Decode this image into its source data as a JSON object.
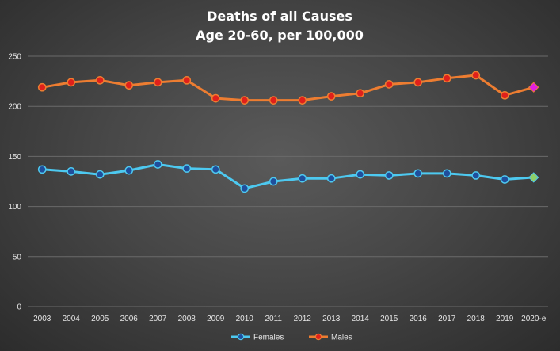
{
  "chart_data": {
    "type": "line",
    "title": [
      "Deaths of all Causes",
      "Age 20-60, per 100,000"
    ],
    "xlabel": "",
    "ylabel": "",
    "categories": [
      "2003",
      "2004",
      "2005",
      "2006",
      "2007",
      "2008",
      "2009",
      "2010",
      "2011",
      "2012",
      "2013",
      "2014",
      "2015",
      "2016",
      "2017",
      "2018",
      "2019",
      "2020-e"
    ],
    "ylim": [
      0,
      250
    ],
    "yticks": [
      0,
      50,
      100,
      150,
      200,
      250
    ],
    "grid": true,
    "legend_position": "bottom",
    "series": [
      {
        "name": "Females",
        "color": "#4dc9f0",
        "marker_fill": "#1f4e9c",
        "last_marker": "diamond",
        "last_marker_color": "#8fd16a",
        "values": [
          137,
          135,
          132,
          136,
          142,
          138,
          137,
          118,
          125,
          128,
          128,
          132,
          131,
          133,
          133,
          131,
          127,
          129
        ]
      },
      {
        "name": "Males",
        "color": "#ed7d31",
        "marker_fill": "#e0201b",
        "last_marker": "diamond",
        "last_marker_color": "#e020e0",
        "values": [
          219,
          224,
          226,
          221,
          224,
          226,
          208,
          206,
          206,
          206,
          210,
          213,
          222,
          224,
          228,
          231,
          211,
          219
        ]
      }
    ]
  }
}
